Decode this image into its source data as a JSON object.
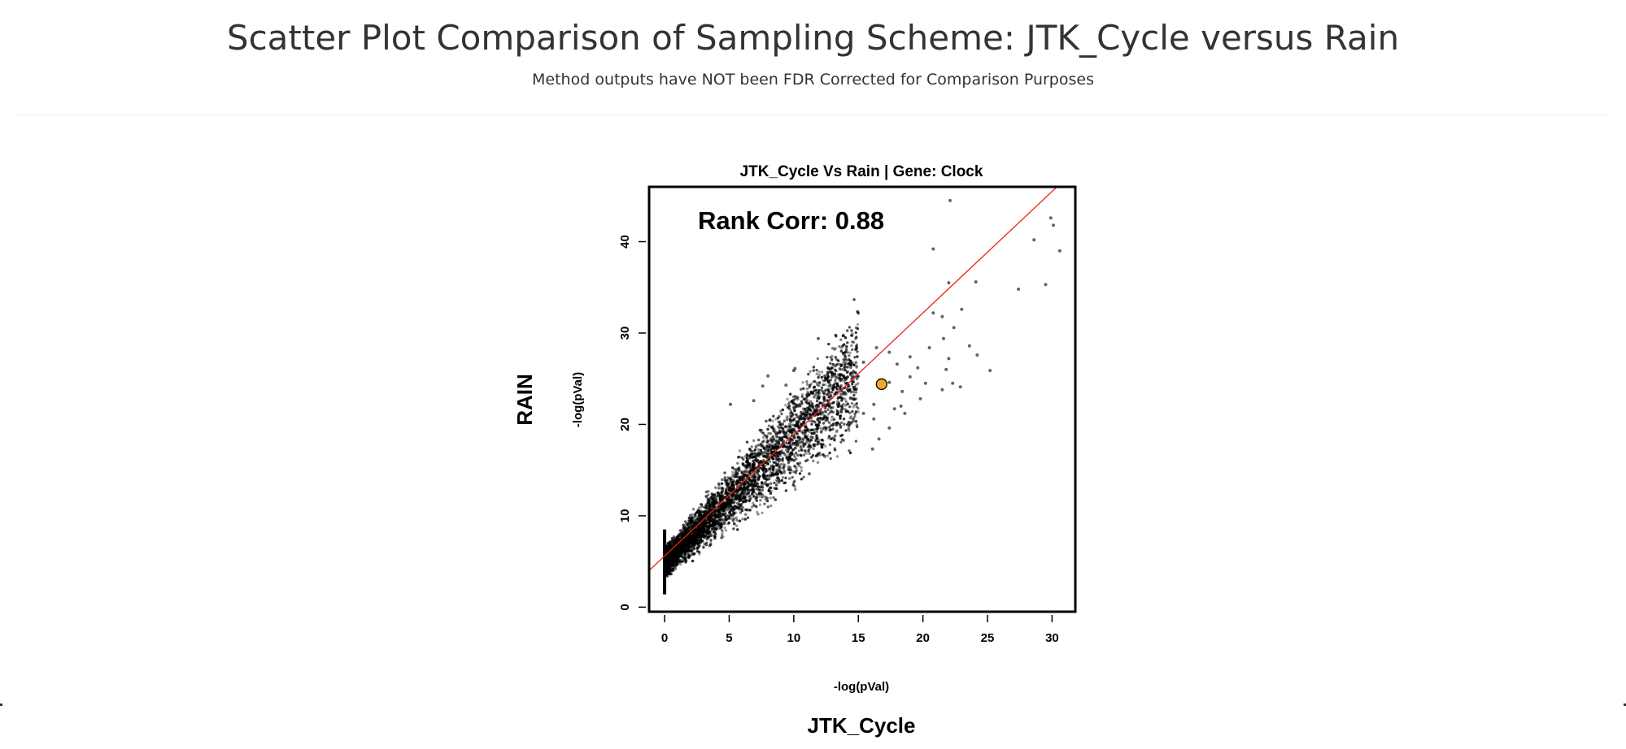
{
  "header": {
    "title": "Scatter Plot Comparison of Sampling Scheme: JTK_Cycle versus Rain",
    "subtitle": "Method outputs have NOT been FDR Corrected for Comparison Purposes"
  },
  "outer_labels": {
    "y_method": "RAIN",
    "x_method": "JTK_Cycle"
  },
  "chart_data": {
    "type": "scatter",
    "title": "JTK_Cycle Vs Rain | Gene: Clock",
    "xlabel": "-log(pVal)",
    "ylabel": "-log(pVal)",
    "xlim": [
      -1.2,
      31.8
    ],
    "ylim": [
      -0.5,
      46
    ],
    "xticks": [
      0,
      5,
      10,
      15,
      20,
      25,
      30
    ],
    "yticks": [
      0,
      10,
      20,
      30,
      40
    ],
    "grid": false,
    "annotation": "Rank Corr: 0.88",
    "regression_line": {
      "slope": 1.33,
      "intercept": 5.6,
      "color": "#e8241c"
    },
    "highlight": {
      "label": "Clock",
      "x": 16.8,
      "y": 24.4,
      "color": "#f5a623"
    },
    "points": [
      [
        22.1,
        44.5
      ],
      [
        20.8,
        39.2
      ],
      [
        30.6,
        39.0
      ],
      [
        29.9,
        42.6
      ],
      [
        30.1,
        41.8
      ],
      [
        28.6,
        40.2
      ],
      [
        29.5,
        35.3
      ],
      [
        27.4,
        34.8
      ],
      [
        24.1,
        35.6
      ],
      [
        22.0,
        35.5
      ],
      [
        23.0,
        32.6
      ],
      [
        21.5,
        31.8
      ],
      [
        22.4,
        30.6
      ],
      [
        20.8,
        32.2
      ],
      [
        21.6,
        29.4
      ],
      [
        23.6,
        28.6
      ],
      [
        24.2,
        27.6
      ],
      [
        25.2,
        25.9
      ],
      [
        22.0,
        27.2
      ],
      [
        21.8,
        26.0
      ],
      [
        20.5,
        28.4
      ],
      [
        22.9,
        24.1
      ],
      [
        22.3,
        24.5
      ],
      [
        21.5,
        23.8
      ],
      [
        19.6,
        26.2
      ],
      [
        20.2,
        24.5
      ],
      [
        19.0,
        25.2
      ],
      [
        18.4,
        23.6
      ],
      [
        17.4,
        24.6
      ],
      [
        16.2,
        22.2
      ],
      [
        17.8,
        21.7
      ],
      [
        16.1,
        17.3
      ],
      [
        16.6,
        18.4
      ],
      [
        18.3,
        22.0
      ],
      [
        19.8,
        22.8
      ],
      [
        19.0,
        27.4
      ],
      [
        18.0,
        26.6
      ],
      [
        17.4,
        27.9
      ],
      [
        16.4,
        28.4
      ],
      [
        15.4,
        26.8
      ],
      [
        14.8,
        28.2
      ],
      [
        14.0,
        27.2
      ],
      [
        13.2,
        26.4
      ],
      [
        11.9,
        29.4
      ],
      [
        10.1,
        26.1
      ],
      [
        10.0,
        25.9
      ],
      [
        9.4,
        24.3
      ],
      [
        8.0,
        25.3
      ],
      [
        7.6,
        24.2
      ],
      [
        6.9,
        22.6
      ],
      [
        5.1,
        22.2
      ],
      [
        13.6,
        23.0
      ],
      [
        14.6,
        20.6
      ],
      [
        15.4,
        21.2
      ],
      [
        16.2,
        20.6
      ],
      [
        17.4,
        19.6
      ],
      [
        18.6,
        21.2
      ],
      [
        12.8,
        19.4
      ],
      [
        11.8,
        18.6
      ],
      [
        12.4,
        16.5
      ],
      [
        9.8,
        16.1
      ],
      [
        11.2,
        14.6
      ]
    ]
  }
}
